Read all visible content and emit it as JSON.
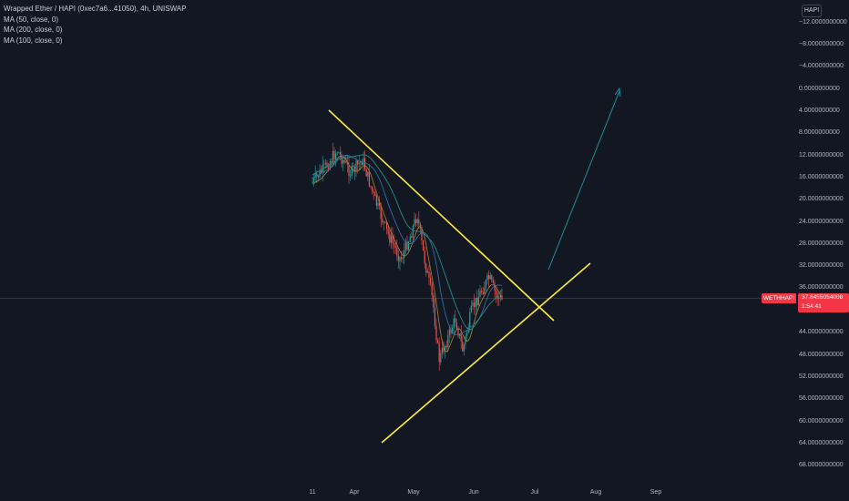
{
  "legend": {
    "symbol": "Wrapped Ether / HAPI (0xec7a6...41050), 4h, UNISWAP",
    "ma1": "MA (50, close, 0)",
    "ma2": "MA (200, close, 0)",
    "ma3": "MA (100, close, 0)"
  },
  "axis_unit": "HAPI",
  "price_ticks": [
    "−12.0000000000",
    "−8.0000000000",
    "−4.0000000000",
    "0.0000000000",
    "4.0000000000",
    "8.0000000000",
    "12.0000000000",
    "16.0000000000",
    "20.0000000000",
    "24.0000000000",
    "28.0000000000",
    "32.0000000000",
    "36.0000000000",
    "44.0000000000",
    "48.0000000000",
    "52.0000000000",
    "56.0000000000",
    "60.0000000000",
    "64.0000000000",
    "68.0000000000"
  ],
  "time_ticks": [
    "11",
    "Apr",
    "May",
    "Jun",
    "Jul",
    "Aug",
    "Sep"
  ],
  "current_price": {
    "label": "WETHHAPI",
    "value": "37.6455054008",
    "countdown": "1:54:41",
    "color": "#f23645"
  },
  "colors": {
    "background": "#131722",
    "up_candle": "#26a69a",
    "down_candle": "#ef5350",
    "trendline": "#ffeb3b",
    "arrow": "#1e8f9e",
    "ma50": "#9c7a3a",
    "ma100": "#2a6fa8",
    "ma200": "#1f8f88"
  }
}
